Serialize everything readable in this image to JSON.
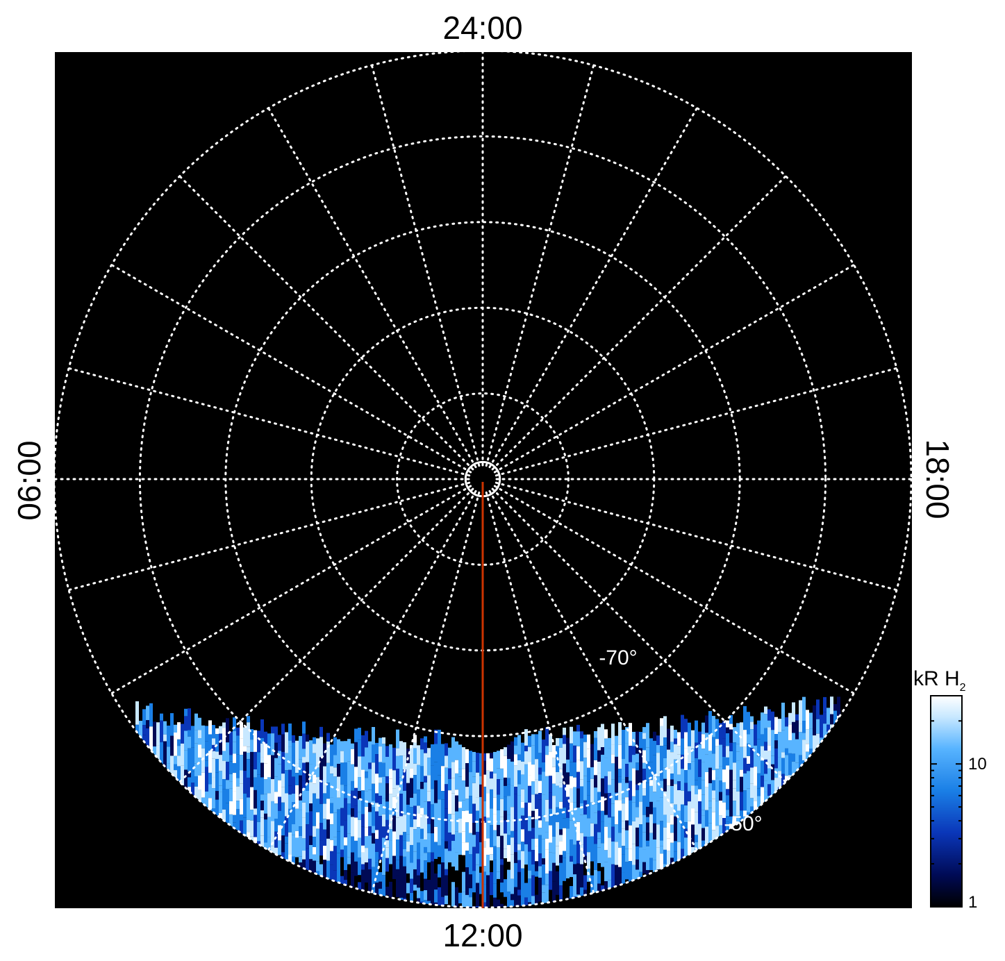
{
  "chart_data": {
    "type": "heatmap",
    "projection": "polar",
    "title": "",
    "background_color": "#000000",
    "grid": true,
    "grid_color": "#ffffff",
    "local_time_labels": {
      "top": "24:00",
      "bottom": "12:00",
      "left": "06:00",
      "right": "18:00"
    },
    "latitude_labels": [
      {
        "text": "-70°",
        "latitude": -70
      },
      {
        "text": "-50°",
        "latitude": -50
      }
    ],
    "latitude_circles": [
      -88,
      -80,
      -70,
      -60,
      -50,
      -40
    ],
    "meridian_step_hours": 1,
    "highlight_meridian": {
      "local_time": "12:00",
      "color": "#cc3300"
    },
    "colorbar": {
      "title": "kR H",
      "title_subscript": "2",
      "ticks": [
        "10",
        "1"
      ],
      "scale": "log",
      "range": [
        1,
        30
      ],
      "colors": [
        "#000000",
        "#000a55",
        "#0a36b8",
        "#1a7fe6",
        "#58b4ff",
        "#c8e8ff",
        "#ffffff"
      ],
      "placement": "right-bottom"
    },
    "data_region": {
      "description_free": true,
      "latitude_range": [
        -40,
        -65
      ],
      "local_time_range": [
        "08:00",
        "16:00"
      ],
      "intensity_range_kR": [
        1,
        30
      ]
    }
  }
}
